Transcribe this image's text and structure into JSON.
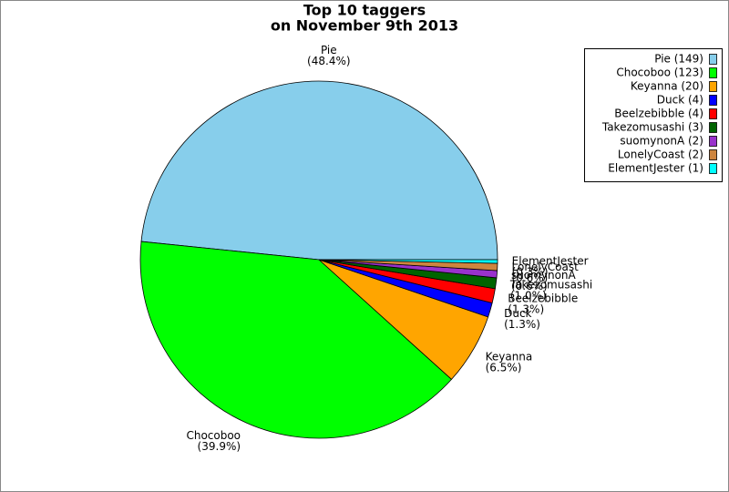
{
  "chart_data": {
    "type": "pie",
    "title": [
      "Top 10 taggers",
      "on November 9th 2013"
    ],
    "categories": [
      "Pie",
      "Chocoboo",
      "Keyanna",
      "Duck",
      "Beelzebibble",
      "Takezomusashi",
      "suomynonA",
      "LonelyCoast",
      "ElementJester"
    ],
    "values": [
      149,
      123,
      20,
      4,
      4,
      3,
      2,
      2,
      1
    ],
    "percent_labels": [
      "(48.4%)",
      "(39.9%)",
      "(6.5%)",
      "(1.3%)",
      "(1.3%)",
      "(1.0%)",
      "(0.6%)",
      "(0.6%)",
      "(0.3%)"
    ],
    "legend_labels": [
      "Pie (149)",
      "Chocoboo (123)",
      "Keyanna (20)",
      "Duck (4)",
      "Beelzebibble (4)",
      "Takezomusashi (3)",
      "suomynonA (2)",
      "LonelyCoast (2)",
      "ElementJester (1)"
    ],
    "colors": [
      "#87ceeb",
      "#00ff00",
      "#ffa500",
      "#0000ff",
      "#ff0000",
      "#006400",
      "#9932cc",
      "#cd853f",
      "#00ffff"
    ],
    "legend": "upper right"
  }
}
